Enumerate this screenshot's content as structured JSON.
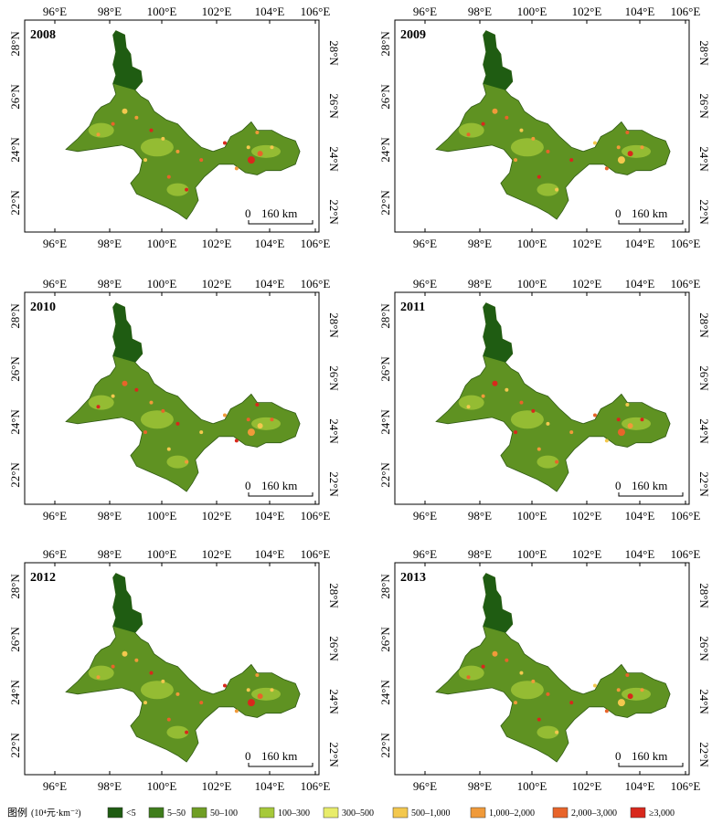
{
  "maps": [
    {
      "year": "2008"
    },
    {
      "year": "2009"
    },
    {
      "year": "2010"
    },
    {
      "year": "2011"
    },
    {
      "year": "2012"
    },
    {
      "year": "2013"
    }
  ],
  "axes": {
    "longitude_ticks": [
      "96°E",
      "98°E",
      "100°E",
      "102°E",
      "104°E",
      "106°E"
    ],
    "latitude_ticks": [
      "28°N",
      "26°N",
      "24°N",
      "22°N"
    ]
  },
  "scale_bar": {
    "zero": "0",
    "distance": "160 km"
  },
  "legend": {
    "title": "图例",
    "unit": "(10⁴元·km⁻²)",
    "classes": [
      {
        "label": "<5",
        "color": "#1f5c12"
      },
      {
        "label": "5–50",
        "color": "#3f7d1c"
      },
      {
        "label": "50–100",
        "color": "#6f9e24"
      },
      {
        "label": "100–300",
        "color": "#a6c93a"
      },
      {
        "label": "300–500",
        "color": "#e8ec6a"
      },
      {
        "label": "500–1,000",
        "color": "#f3c84e"
      },
      {
        "label": "1,000–2,000",
        "color": "#f09a3a"
      },
      {
        "label": "2,000–3,000",
        "color": "#e8642a"
      },
      {
        "label": "≥3,000",
        "color": "#d8281c"
      }
    ]
  }
}
